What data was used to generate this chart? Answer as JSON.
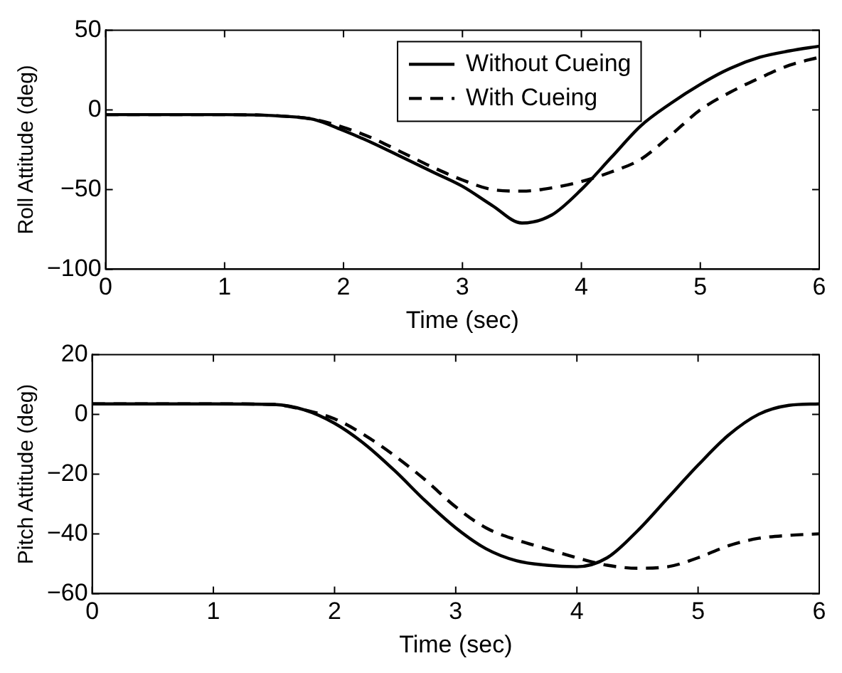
{
  "chart_data": [
    {
      "type": "line",
      "xlabel": "Time (sec)",
      "ylabel": "Roll Attitude (deg)",
      "x": [
        0,
        1,
        1.5,
        1.75,
        2,
        2.25,
        2.5,
        2.75,
        3,
        3.25,
        3.5,
        3.75,
        4,
        4.25,
        4.5,
        4.75,
        5,
        5.25,
        5.5,
        5.75,
        6
      ],
      "xlim": [
        0,
        6
      ],
      "xticks": [
        0,
        1,
        2,
        3,
        4,
        5,
        6
      ],
      "ylim": [
        -100,
        50
      ],
      "yticks": [
        -100,
        -50,
        0,
        50
      ],
      "grid": false,
      "legend": "top",
      "marker": "none",
      "series": [
        {
          "name": "Without Cueing",
          "color": "#000000",
          "line_style": "solid",
          "values": [
            -3,
            -3,
            -4,
            -6,
            -13,
            -21,
            -30,
            -39,
            -48,
            -60,
            -71,
            -66,
            -50,
            -30,
            -10,
            4,
            16,
            26,
            33,
            37,
            40
          ]
        },
        {
          "name": "With Cueing",
          "color": "#000000",
          "line_style": "dashed",
          "values": [
            -3,
            -3,
            -4,
            -6,
            -11,
            -18,
            -27,
            -36,
            -44,
            -50,
            -51,
            -49,
            -45,
            -39,
            -31,
            -16,
            0,
            11,
            20,
            28,
            33
          ]
        }
      ]
    },
    {
      "type": "line",
      "xlabel": "Time (sec)",
      "ylabel": "Pitch Attitude (deg)",
      "x": [
        0,
        1,
        1.5,
        1.75,
        2,
        2.25,
        2.5,
        2.75,
        3,
        3.25,
        3.5,
        3.75,
        4,
        4.25,
        4.5,
        4.75,
        5,
        5.25,
        5.5,
        5.75,
        6
      ],
      "xlim": [
        0,
        6
      ],
      "xticks": [
        0,
        1,
        2,
        3,
        4,
        5,
        6
      ],
      "ylim": [
        -60,
        20
      ],
      "yticks": [
        -60,
        -40,
        -20,
        0,
        20
      ],
      "grid": false,
      "legend": false,
      "marker": "none",
      "series": [
        {
          "color": "#000000",
          "line_style": "solid",
          "values": [
            3.5,
            3.5,
            3.3,
            1.5,
            -3,
            -10,
            -19,
            -29,
            -38,
            -45,
            -49,
            -50.5,
            -51,
            -48,
            -39,
            -28,
            -17,
            -7,
            0,
            3,
            3.5
          ]
        },
        {
          "color": "#000000",
          "line_style": "dashed",
          "values": [
            3.5,
            3.5,
            3.3,
            1.5,
            -1.5,
            -7,
            -14,
            -22,
            -31,
            -38,
            -42,
            -45,
            -48,
            -50.5,
            -51.5,
            -51,
            -48,
            -44,
            -41.5,
            -40.5,
            -40
          ]
        }
      ]
    }
  ]
}
